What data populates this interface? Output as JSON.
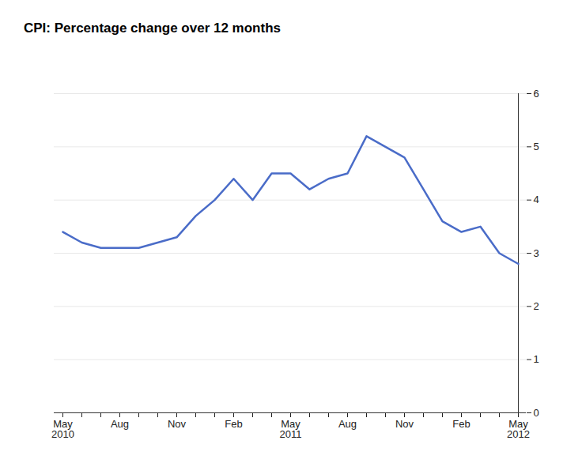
{
  "chart_data": {
    "type": "line",
    "title": "CPI: Percentage change over 12 months",
    "categories": [
      "May\n2010",
      null,
      null,
      "Aug",
      null,
      null,
      "Nov",
      null,
      null,
      "Feb",
      null,
      null,
      "May\n2011",
      null,
      null,
      "Aug",
      null,
      null,
      "Nov",
      null,
      null,
      "Feb",
      null,
      null,
      "May\n2012"
    ],
    "values": [
      3.4,
      3.2,
      3.1,
      3.1,
      3.1,
      3.2,
      3.3,
      3.7,
      4.0,
      4.4,
      4.0,
      4.5,
      4.5,
      4.2,
      4.4,
      4.5,
      5.2,
      5.0,
      4.8,
      4.2,
      3.6,
      3.4,
      3.5,
      3.0,
      2.8
    ],
    "color": "#4a6cc8",
    "ylim": [
      0,
      6
    ],
    "yticks": [
      0,
      1,
      2,
      3,
      4,
      5,
      6
    ],
    "grid": true
  }
}
